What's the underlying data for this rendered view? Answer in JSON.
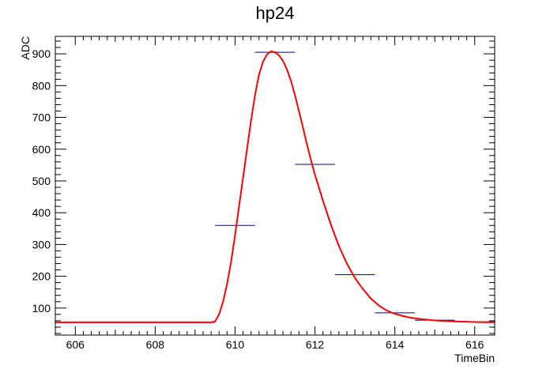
{
  "chart_data": {
    "type": "histogram-with-fit",
    "title": "hp24",
    "xlabel": "TimeBin",
    "ylabel": "ADC",
    "xlim": [
      605.5,
      616.5
    ],
    "ylim": [
      15,
      955
    ],
    "x_ticks": [
      606,
      608,
      610,
      612,
      614,
      616
    ],
    "y_ticks": [
      100,
      200,
      300,
      400,
      500,
      600,
      700,
      800,
      900
    ],
    "grid": false,
    "legend": "none",
    "colors": {
      "histogram": "#000080",
      "fit": "#ff0000",
      "axes": "#000000"
    },
    "series": [
      {
        "kind": "histogram",
        "bins": [
          {
            "x0": 605.5,
            "x1": 606.5,
            "y": 55
          },
          {
            "x0": 606.5,
            "x1": 607.5,
            "y": 55
          },
          {
            "x0": 607.5,
            "x1": 608.5,
            "y": 55
          },
          {
            "x0": 608.5,
            "x1": 609.5,
            "y": 55
          },
          {
            "x0": 609.5,
            "x1": 610.5,
            "y": 360
          },
          {
            "x0": 610.5,
            "x1": 611.5,
            "y": 905
          },
          {
            "x0": 611.5,
            "x1": 612.5,
            "y": 552
          },
          {
            "x0": 612.5,
            "x1": 613.5,
            "y": 205
          },
          {
            "x0": 613.5,
            "x1": 614.5,
            "y": 85
          },
          {
            "x0": 614.5,
            "x1": 615.5,
            "y": 62
          },
          {
            "x0": 615.5,
            "x1": 616.5,
            "y": 57
          }
        ]
      },
      {
        "kind": "fit",
        "points": [
          [
            605.5,
            55
          ],
          [
            609.4,
            55
          ],
          [
            609.5,
            58
          ],
          [
            609.6,
            80
          ],
          [
            609.7,
            120
          ],
          [
            609.8,
            175
          ],
          [
            609.9,
            245
          ],
          [
            610.0,
            330
          ],
          [
            610.1,
            420
          ],
          [
            610.2,
            510
          ],
          [
            610.3,
            600
          ],
          [
            610.4,
            690
          ],
          [
            610.5,
            770
          ],
          [
            610.6,
            835
          ],
          [
            610.7,
            875
          ],
          [
            610.8,
            898
          ],
          [
            610.9,
            908
          ],
          [
            611.0,
            905
          ],
          [
            611.1,
            895
          ],
          [
            611.2,
            878
          ],
          [
            611.3,
            850
          ],
          [
            611.4,
            815
          ],
          [
            611.5,
            770
          ],
          [
            611.6,
            720
          ],
          [
            611.7,
            668
          ],
          [
            611.8,
            615
          ],
          [
            611.9,
            565
          ],
          [
            612.0,
            520
          ],
          [
            612.2,
            438
          ],
          [
            612.4,
            362
          ],
          [
            612.6,
            295
          ],
          [
            612.8,
            240
          ],
          [
            613.0,
            195
          ],
          [
            613.2,
            160
          ],
          [
            613.4,
            130
          ],
          [
            613.6,
            108
          ],
          [
            613.8,
            92
          ],
          [
            614.0,
            82
          ],
          [
            614.3,
            72
          ],
          [
            614.6,
            66
          ],
          [
            615.0,
            61
          ],
          [
            615.5,
            58
          ],
          [
            616.0,
            56
          ],
          [
            616.5,
            55
          ]
        ]
      }
    ]
  }
}
